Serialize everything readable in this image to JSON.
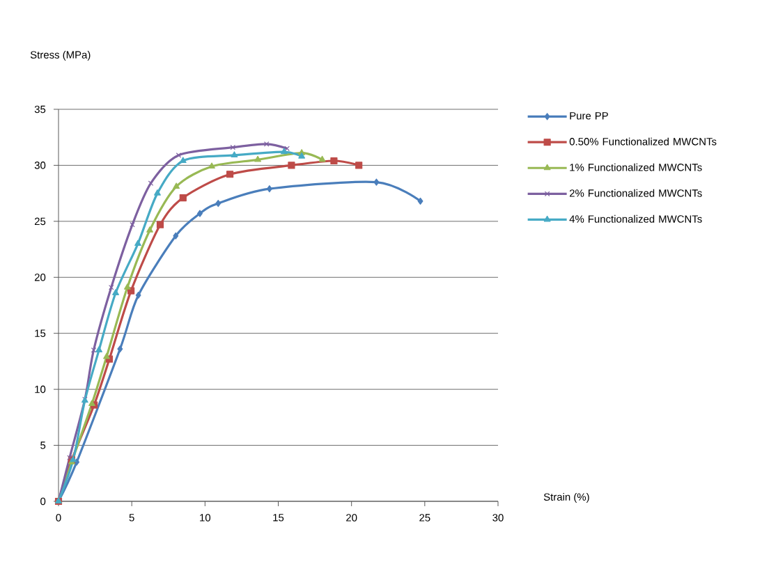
{
  "chart_data": {
    "type": "line",
    "xlabel": "Strain (%)",
    "ylabel": "Stress (MPa)",
    "xlim": [
      0,
      30
    ],
    "ylim": [
      0,
      35
    ],
    "xticks": [
      0,
      5,
      10,
      15,
      20,
      25,
      30
    ],
    "yticks": [
      0,
      5,
      10,
      15,
      20,
      25,
      30,
      35
    ],
    "grid": "y",
    "legend": "right",
    "line_style": "solid",
    "series": [
      {
        "name": "Pure PP",
        "color": "#4a7ebb",
        "marker": "diamond",
        "x": [
          0,
          1.24,
          4.2,
          5.45,
          8.0,
          9.65,
          10.9,
          14.4,
          21.7,
          24.7
        ],
        "values": [
          0,
          3.5,
          13.6,
          18.4,
          23.7,
          25.7,
          26.6,
          27.9,
          28.5,
          26.8
        ]
      },
      {
        "name": "0.50% Functionalized MWCNTs",
        "color": "#be4b48",
        "marker": "square",
        "x": [
          0,
          0.9,
          2.43,
          3.47,
          4.95,
          6.94,
          8.5,
          11.7,
          15.9,
          18.8,
          20.5
        ],
        "values": [
          0,
          3.7,
          8.6,
          12.7,
          18.8,
          24.7,
          27.1,
          29.2,
          30.0,
          30.4,
          30.0
        ]
      },
      {
        "name": "1% Functionalized MWCNTs",
        "color": "#98b954",
        "marker": "triangle",
        "x": [
          0,
          0.9,
          2.28,
          3.28,
          4.7,
          6.23,
          8.04,
          10.46,
          13.6,
          16.6,
          18.0
        ],
        "values": [
          0,
          3.5,
          8.7,
          12.9,
          19.1,
          24.2,
          28.1,
          29.9,
          30.5,
          31.1,
          30.5
        ]
      },
      {
        "name": "2% Functionalized MWCNTs",
        "color": "#7d60a0",
        "marker": "cross",
        "x": [
          0,
          0.76,
          1.8,
          2.4,
          3.6,
          5.04,
          6.3,
          8.2,
          11.9,
          14.2,
          15.6
        ],
        "values": [
          0,
          3.9,
          9.1,
          13.5,
          19.1,
          24.7,
          28.4,
          30.9,
          31.6,
          31.9,
          31.5
        ]
      },
      {
        "name": "4% Functionalized MWCNTs",
        "color": "#46aac5",
        "marker": "triangle",
        "x": [
          0,
          1.0,
          1.8,
          2.76,
          3.9,
          5.42,
          6.75,
          8.5,
          12.0,
          15.4,
          16.6
        ],
        "values": [
          0,
          3.7,
          9.0,
          13.5,
          18.6,
          23.0,
          27.5,
          30.4,
          30.9,
          31.2,
          30.8
        ]
      }
    ]
  }
}
